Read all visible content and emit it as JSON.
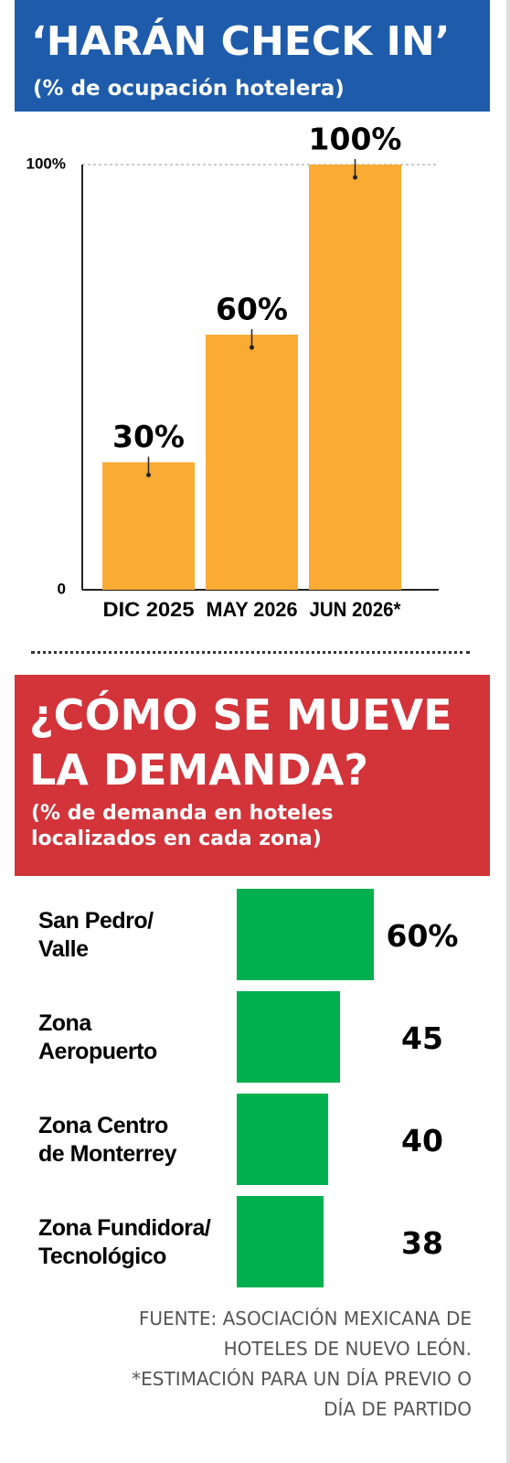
{
  "chart_data": [
    {
      "type": "bar",
      "title": "‘HARÁN CHECK IN’",
      "subtitle": "(% de ocupación hotelera)",
      "categories": [
        "DIC 2025",
        "MAY 2026",
        "JUN 2026*"
      ],
      "values": [
        30,
        60,
        100
      ],
      "value_labels": [
        "30%",
        "60%",
        "100%"
      ],
      "color": "#f9ab33",
      "ylim": [
        0,
        100
      ],
      "yticks": [
        0,
        {
          "value": 100,
          "label": "100%"
        }
      ],
      "grid": true
    },
    {
      "type": "hbar",
      "title": "¿CÓMO SE MUEVE\nLA DEMANDA?",
      "subtitle": "(% de demanda en hoteles\nlocalizados en cada zona)",
      "categories": [
        "San Pedro/\nValle",
        "Zona\nAeropuerto",
        "Zona Centro\nde Monterrey",
        "Zona Fundidora/\nTecnológico"
      ],
      "values": [
        60,
        45,
        40,
        38
      ],
      "value_labels": [
        "60%",
        "45",
        "40",
        "38"
      ],
      "color": "#00b04f"
    }
  ],
  "footer": {
    "source": "FUENTE: ASOCIACIÓN MEXICANA DE\nHOTELES DE NUEVO LEÓN.",
    "note": "*ESTIMACIÓN PARA UN DÍA PREVIO O\nDÍA DE PARTIDO"
  }
}
